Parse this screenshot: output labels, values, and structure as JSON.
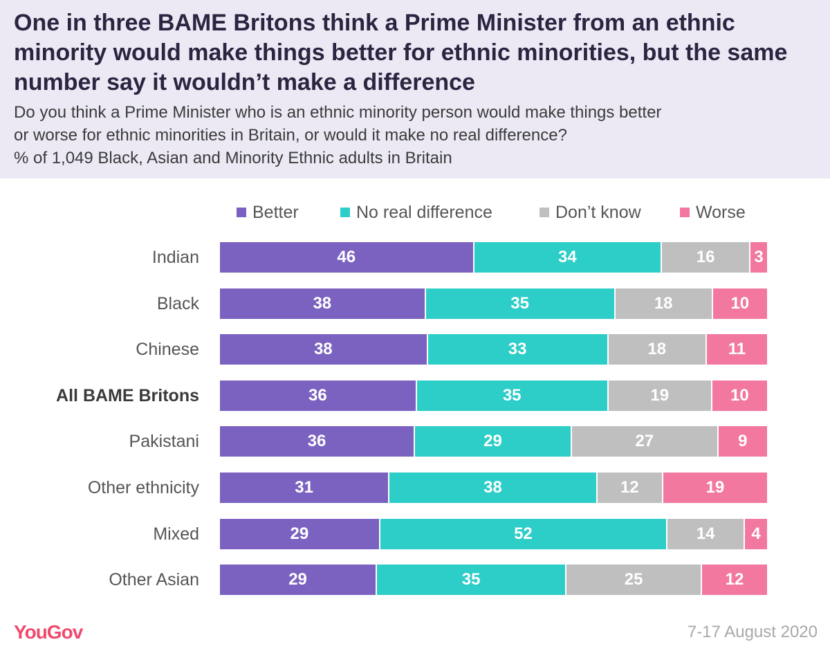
{
  "header": {
    "title": "One in three BAME Britons think a Prime Minister from an ethnic minority would make things better for ethnic minorities, but the same number say it wouldn’t make a difference",
    "subtitle_lines": [
      "Do you think a Prime Minister who is an ethnic minority person would make things better",
      "or worse for ethnic minorities in Britain, or would it make no real difference?",
      "% of 1,049 Black, Asian and Minority Ethnic adults in Britain"
    ]
  },
  "footer": {
    "logo": "YouGov",
    "date": "7-17 August 2020"
  },
  "chart_data": {
    "type": "bar",
    "orientation": "horizontal",
    "stacked": true,
    "legend_position": "top",
    "grid": false,
    "categories": [
      "Indian",
      "Black",
      "Chinese",
      "All BAME Britons",
      "Pakistani",
      "Other ethnicity",
      "Mixed",
      "Other Asian"
    ],
    "highlighted_category": "All BAME Britons",
    "series": [
      {
        "name": "Better",
        "color": "#7b62c0",
        "values": [
          46,
          38,
          38,
          36,
          36,
          31,
          29,
          29
        ]
      },
      {
        "name": "No real difference",
        "color": "#2dcdc8",
        "values": [
          34,
          35,
          33,
          35,
          29,
          38,
          52,
          35
        ]
      },
      {
        "name": "Don’t know",
        "color": "#bfbfbf",
        "values": [
          16,
          18,
          18,
          19,
          27,
          12,
          14,
          25
        ]
      },
      {
        "name": "Worse",
        "color": "#f2789f",
        "values": [
          3,
          10,
          11,
          10,
          9,
          19,
          4,
          12
        ]
      }
    ]
  }
}
